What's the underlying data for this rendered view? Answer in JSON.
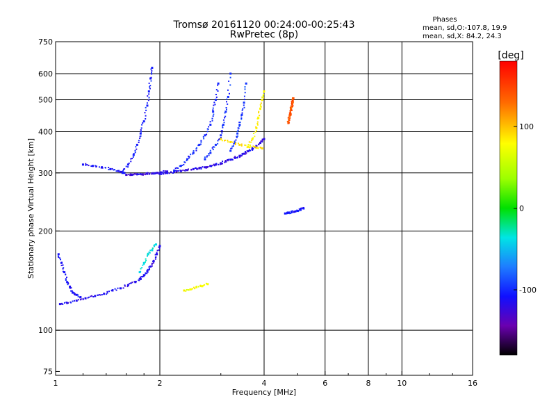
{
  "chart_data": {
    "type": "scatter",
    "title": "Tromsø 20161120 00:24:00-00:25:43",
    "subtitle": "RwPretec (8p)",
    "xlabel": "Frequency [MHz]",
    "ylabel": "Stationary phase Virtual Height [km]",
    "x_scale": "log",
    "y_scale": "log",
    "xlim": [
      1,
      16
    ],
    "ylim": [
      73,
      750
    ],
    "x_ticks": [
      1,
      2,
      4,
      6,
      8,
      10,
      16
    ],
    "x_tick_labels": [
      "1",
      "2",
      "4",
      "6",
      "8",
      "10",
      "16"
    ],
    "x_grid": [
      2,
      4,
      6,
      8,
      10
    ],
    "y_ticks": [
      75,
      100,
      200,
      300,
      400,
      500,
      600,
      750
    ],
    "y_tick_labels": [
      "75",
      "100",
      "200",
      "300",
      "400",
      "500",
      "600",
      "750"
    ],
    "y_grid": [
      100,
      200,
      300,
      400,
      500,
      600
    ],
    "grid": true,
    "colorbar": {
      "label": "[deg]",
      "range": [
        -180,
        180
      ],
      "ticks": [
        100,
        0,
        -100
      ],
      "tick_labels": [
        "100",
        "0",
        "-100"
      ]
    },
    "stats": {
      "heading": "Phases",
      "line_o": "mean, sd,O:-107.8, 19.9",
      "line_x": "mean, sd,X:  84.2, 24.3"
    },
    "series": [
      {
        "traces": [
          {
            "f": [
              1.03,
              1.08,
              1.15,
              1.22,
              1.3,
              1.38,
              1.46,
              1.54,
              1.62,
              1.7,
              1.76,
              1.8,
              1.84,
              1.88,
              1.92,
              1.96,
              2.0
            ],
            "h": [
              120,
              121,
              123,
              125,
              127,
              129,
              132,
              134,
              137,
              140,
              143,
              147,
              151,
              156,
              162,
              170,
              180
            ],
            "phase": -115
          },
          {
            "f": [
              1.02,
              1.04,
              1.06,
              1.08,
              1.1,
              1.12,
              1.15,
              1.18
            ],
            "h": [
              170,
              160,
              150,
              140,
              135,
              130,
              128,
              126
            ],
            "phase": -110
          },
          {
            "f": [
              1.6,
              1.66,
              1.72,
              1.78,
              1.84,
              1.9,
              1.96,
              2.02,
              2.1
            ],
            "h": [
              296,
              296,
              297,
              297,
              298,
              299,
              300,
              301,
              303
            ],
            "phase": -120
          },
          {
            "f": [
              1.2,
              1.28,
              1.36,
              1.44,
              1.52,
              1.58
            ],
            "h": [
              318,
              315,
              312,
              308,
              304,
              300
            ],
            "phase": -110
          },
          {
            "f": [
              1.56,
              1.62,
              1.68,
              1.72,
              1.76,
              1.8,
              1.84,
              1.86,
              1.88,
              1.9
            ],
            "h": [
              300,
              318,
              340,
              365,
              395,
              430,
              480,
              530,
              580,
              625
            ],
            "phase": -105
          },
          {
            "f": [
              2.0,
              2.1,
              2.2,
              2.3,
              2.4,
              2.5,
              2.6,
              2.7,
              2.8,
              2.9,
              3.0,
              3.1,
              3.2,
              3.3,
              3.4,
              3.5,
              3.6,
              3.7,
              3.8,
              3.9,
              4.0
            ],
            "h": [
              298,
              300,
              302,
              304,
              306,
              308,
              310,
              312,
              315,
              318,
              321,
              325,
              329,
              333,
              338,
              343,
              349,
              355,
              362,
              370,
              380
            ],
            "phase": -118
          },
          {
            "f": [
              2.2,
              2.3,
              2.4,
              2.5,
              2.6,
              2.7,
              2.8,
              2.85,
              2.9,
              2.95
            ],
            "h": [
              305,
              315,
              330,
              345,
              365,
              390,
              420,
              460,
              500,
              560
            ],
            "phase": -100
          },
          {
            "f": [
              2.7,
              2.8,
              2.9,
              3.0,
              3.05,
              3.1,
              3.15,
              3.2
            ],
            "h": [
              330,
              345,
              365,
              390,
              420,
              460,
              510,
              600
            ],
            "phase": -98
          },
          {
            "f": [
              3.2,
              3.3,
              3.35,
              3.4,
              3.45,
              3.5,
              3.55
            ],
            "h": [
              350,
              370,
              395,
              420,
              450,
              490,
              560
            ],
            "phase": -95
          },
          {
            "f": [
              3.0,
              3.2,
              3.4,
              3.6,
              3.8,
              3.95
            ],
            "h": [
              380,
              372,
              365,
              360,
              358,
              356
            ],
            "phase": 90
          },
          {
            "f": [
              3.6,
              3.7,
              3.8,
              3.85,
              3.9,
              3.95,
              4.0
            ],
            "h": [
              360,
              380,
              410,
              440,
              470,
              500,
              530
            ],
            "phase": 82
          },
          {
            "f": [
              4.7,
              4.72,
              4.74,
              4.76,
              4.78,
              4.8,
              4.82,
              4.84,
              4.86
            ],
            "h": [
              425,
              435,
              445,
              455,
              465,
              475,
              485,
              495,
              505
            ],
            "phase": 140
          },
          {
            "f": [
              4.6,
              4.7,
              4.8,
              4.9,
              5.0,
              5.1,
              5.2
            ],
            "h": [
              226,
              227,
              228,
              229,
              230,
              232,
              234
            ],
            "phase": -108
          },
          {
            "f": [
              1.75,
              1.8,
              1.85,
              1.9,
              1.95
            ],
            "h": [
              150,
              160,
              170,
              175,
              182
            ],
            "phase": -40
          },
          {
            "f": [
              2.35,
              2.45,
              2.55,
              2.65,
              2.75
            ],
            "h": [
              132,
              133,
              135,
              136,
              138
            ],
            "phase": 75
          }
        ]
      }
    ]
  }
}
